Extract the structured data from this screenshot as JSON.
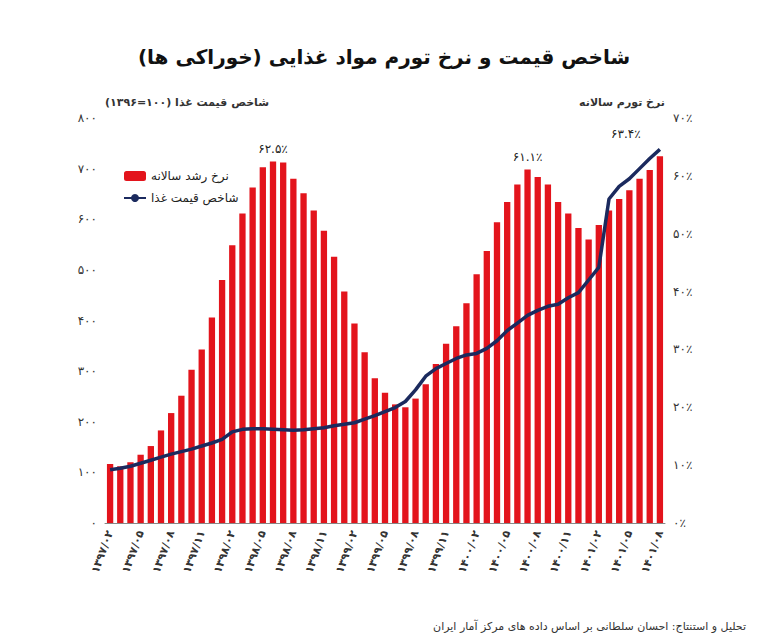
{
  "chart_data": {
    "type": "bar",
    "title": "شاخص قیمت و نرخ تورم مواد غذایی (خوراکی ها)",
    "caption": "تحلیل و استنتاج: احسان سلطانی بر اساس داده های مرکز آمار ایران",
    "y_label": "شاخص قیمت غذا (۱۰۰=۱۳۹۶)",
    "y2_label": "نرخ تورم سالانه",
    "categories": [
      "۱۳۹۷/۰۲",
      null,
      null,
      "۱۳۹۷/۰۵",
      null,
      null,
      "۱۳۹۷/۰۸",
      null,
      null,
      "۱۳۹۷/۱۱",
      null,
      null,
      "۱۳۹۸/۰۲",
      null,
      null,
      "۱۳۹۸/۰۵",
      null,
      null,
      "۱۳۹۸/۰۸",
      null,
      null,
      "۱۳۹۸/۱۱",
      null,
      null,
      "۱۳۹۹/۰۲",
      null,
      null,
      "۱۳۹۹/۰۵",
      null,
      null,
      "۱۳۹۹/۰۸",
      null,
      null,
      "۱۳۹۹/۱۱",
      null,
      null,
      "۱۴۰۰/۰۲",
      null,
      null,
      "۱۴۰۰/۰۵",
      null,
      null,
      "۱۴۰۰/۰۸",
      null,
      null,
      "۱۴۰۰/۱۱",
      null,
      null,
      "۱۴۰۱/۰۲",
      null,
      null,
      "۱۴۰۱/۰۵",
      null,
      null,
      "۱۴۰۱/۰۸"
    ],
    "series": [
      {
        "name": "نرخ رشد سالانه",
        "type": "bar",
        "axis": "y2",
        "color": "#e3141c",
        "values": [
          10.2,
          9.8,
          10.5,
          11.8,
          13.3,
          16,
          19,
          22,
          26.5,
          30,
          35.5,
          42,
          48,
          53.5,
          58,
          61.5,
          62.5,
          62.3,
          59.5,
          57,
          54,
          50.5,
          46,
          40,
          34.5,
          29.5,
          25,
          22.5,
          20.5,
          20,
          21.5,
          24,
          27.5,
          31,
          34,
          38,
          43,
          47,
          52,
          55.5,
          58.5,
          61.1,
          59.8,
          58.5,
          55.5,
          53.5,
          51,
          49,
          51.5,
          54,
          56,
          57.5,
          59.5,
          61,
          63.4
        ],
        "value_labels": [
          null,
          null,
          null,
          null,
          null,
          null,
          null,
          null,
          null,
          null,
          null,
          null,
          null,
          null,
          null,
          null,
          "۶۲.۵٪",
          null,
          null,
          null,
          null,
          null,
          null,
          null,
          null,
          null,
          null,
          null,
          null,
          null,
          null,
          null,
          null,
          null,
          null,
          null,
          null,
          null,
          null,
          null,
          null,
          "۶۱.۱٪",
          null,
          null,
          null,
          null,
          null,
          null,
          null,
          null,
          null,
          null,
          null,
          null,
          "۶۳.۴٪"
        ]
      },
      {
        "name": "شاخص قیمت غذا",
        "type": "line",
        "color": "#1b2a5e",
        "line_style": "solid",
        "marker": "none",
        "values": [
          105,
          108,
          112,
          118,
          124,
          130,
          136,
          141,
          146,
          152,
          158,
          165,
          180,
          185,
          186,
          186,
          185,
          184,
          183,
          184,
          186,
          188,
          192,
          195,
          198,
          205,
          212,
          220,
          228,
          240,
          263,
          290,
          305,
          315,
          325,
          332,
          335,
          345,
          360,
          380,
          395,
          410,
          420,
          428,
          432,
          445,
          455,
          480,
          505,
          640,
          665,
          680,
          700,
          720,
          738
        ]
      }
    ],
    "ylim": [
      0,
      800
    ],
    "yticks": [
      {
        "value": 0,
        "label": "۰"
      },
      {
        "value": 100,
        "label": "۱۰۰"
      },
      {
        "value": 200,
        "label": "۲۰۰"
      },
      {
        "value": 300,
        "label": "۳۰۰"
      },
      {
        "value": 400,
        "label": "۴۰۰"
      },
      {
        "value": 500,
        "label": "۵۰۰"
      },
      {
        "value": 600,
        "label": "۶۰۰"
      },
      {
        "value": 700,
        "label": "۷۰۰"
      },
      {
        "value": 800,
        "label": "۸۰۰"
      }
    ],
    "y2lim": [
      0,
      70
    ],
    "y2ticks": [
      {
        "value": 0,
        "label": "۰٪"
      },
      {
        "value": 10,
        "label": "۱۰٪"
      },
      {
        "value": 20,
        "label": "۲۰٪"
      },
      {
        "value": 30,
        "label": "۳۰٪"
      },
      {
        "value": 40,
        "label": "۴۰٪"
      },
      {
        "value": 50,
        "label": "۵۰٪"
      },
      {
        "value": 60,
        "label": "۶۰٪"
      },
      {
        "value": 70,
        "label": "۷۰٪"
      }
    ],
    "legend": "upper left",
    "grid": false
  }
}
